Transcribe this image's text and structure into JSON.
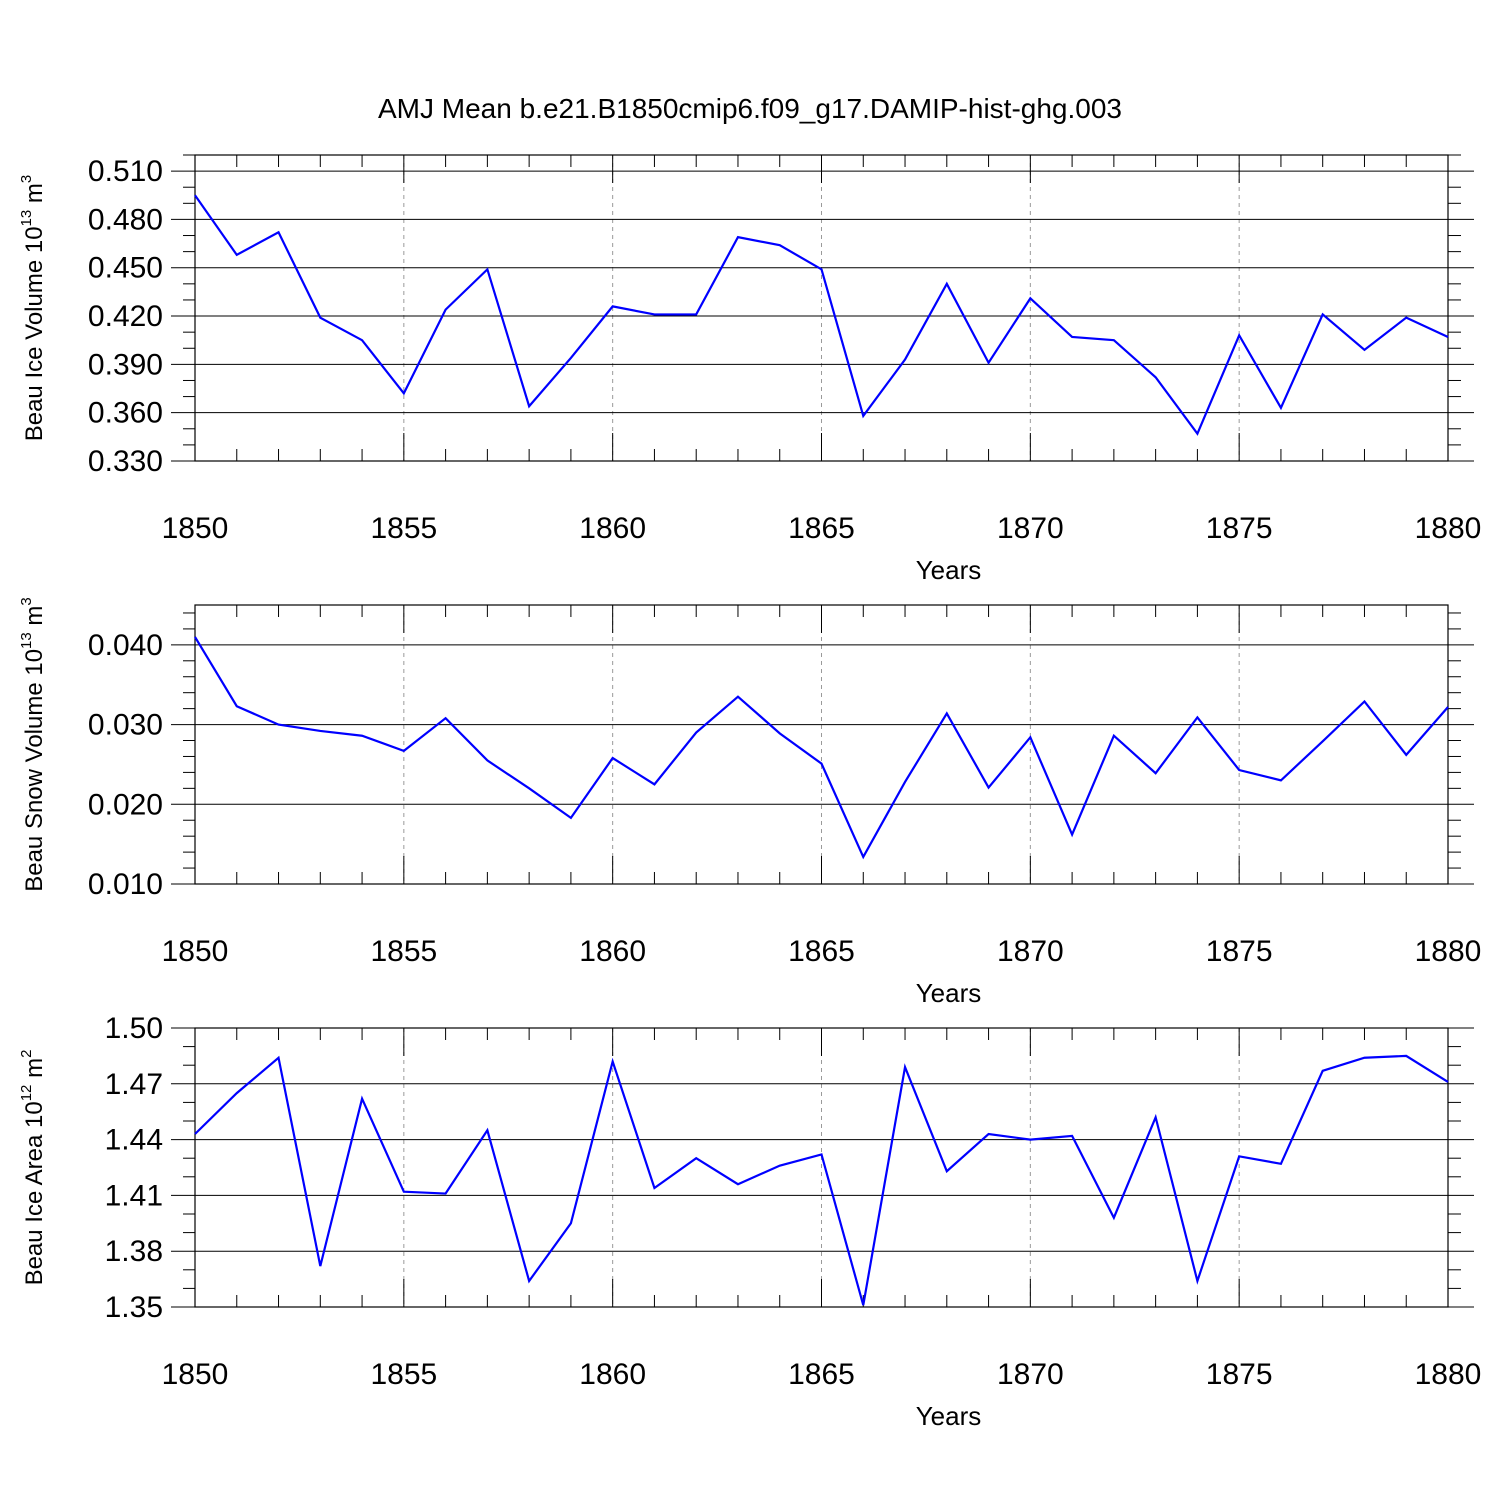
{
  "figure": {
    "title": "AMJ Mean b.e21.B1850cmip6.f09_g17.DAMIP-hist-ghg.003"
  },
  "colors": {
    "series": "#0000ff"
  },
  "chart_data": [
    {
      "type": "line",
      "title": "",
      "ylabel": {
        "text": "Beau Ice Volume 10",
        "exp": "13",
        "unit_text": " m",
        "unit_exp": "3"
      },
      "xlabel": "Years",
      "xlim": [
        1850,
        1880
      ],
      "ylim": [
        0.33,
        0.52
      ],
      "yticks": [
        0.33,
        0.36,
        0.39,
        0.42,
        0.45,
        0.48,
        0.51
      ],
      "ytick_labels": [
        "0.330",
        "0.360",
        "0.390",
        "0.420",
        "0.450",
        "0.480",
        "0.510"
      ],
      "yminor_step": 0.01,
      "xticks": [
        1850,
        1855,
        1860,
        1865,
        1870,
        1875,
        1880
      ],
      "xtick_labels": [
        "1850",
        "1855",
        "1860",
        "1865",
        "1870",
        "1875",
        "1880"
      ],
      "grid": "vertical dashed",
      "series": [
        {
          "x": [
            1850,
            1851,
            1852,
            1853,
            1854,
            1855,
            1856,
            1857,
            1858,
            1859,
            1860,
            1861,
            1862,
            1863,
            1864,
            1865,
            1866,
            1867,
            1868,
            1869,
            1870,
            1871,
            1872,
            1873,
            1874,
            1875,
            1876,
            1877,
            1878,
            1879,
            1880
          ],
          "values": [
            0.495,
            0.458,
            0.472,
            0.419,
            0.405,
            0.372,
            0.424,
            0.449,
            0.364,
            0.394,
            0.426,
            0.421,
            0.421,
            0.469,
            0.464,
            0.449,
            0.358,
            0.393,
            0.44,
            0.391,
            0.431,
            0.407,
            0.405,
            0.382,
            0.347,
            0.408,
            0.363,
            0.421,
            0.399,
            0.419,
            0.407
          ]
        }
      ]
    },
    {
      "type": "line",
      "title": "",
      "ylabel": {
        "text": "Beau Snow Volume 10",
        "exp": "13",
        "unit_text": " m",
        "unit_exp": "3"
      },
      "xlabel": "Years",
      "xlim": [
        1850,
        1880
      ],
      "ylim": [
        0.01,
        0.045
      ],
      "yticks": [
        0.01,
        0.02,
        0.03,
        0.04
      ],
      "ytick_labels": [
        "0.010",
        "0.020",
        "0.030",
        "0.040"
      ],
      "yminor_step": 0.002,
      "xticks": [
        1850,
        1855,
        1860,
        1865,
        1870,
        1875,
        1880
      ],
      "xtick_labels": [
        "1850",
        "1855",
        "1860",
        "1865",
        "1870",
        "1875",
        "1880"
      ],
      "grid": "vertical dashed",
      "series": [
        {
          "x": [
            1850,
            1851,
            1852,
            1853,
            1854,
            1855,
            1856,
            1857,
            1858,
            1859,
            1860,
            1861,
            1862,
            1863,
            1864,
            1865,
            1866,
            1867,
            1868,
            1869,
            1870,
            1871,
            1872,
            1873,
            1874,
            1875,
            1876,
            1877,
            1878,
            1879,
            1880
          ],
          "values": [
            0.041,
            0.0323,
            0.03,
            0.0292,
            0.0286,
            0.0267,
            0.0308,
            0.0255,
            0.022,
            0.0183,
            0.0258,
            0.0225,
            0.029,
            0.0335,
            0.0289,
            0.0251,
            0.0134,
            0.0228,
            0.0314,
            0.0221,
            0.0284,
            0.0162,
            0.0286,
            0.0239,
            0.0309,
            0.0243,
            0.023,
            0.0279,
            0.0329,
            0.0262,
            0.0322
          ]
        }
      ]
    },
    {
      "type": "line",
      "title": "",
      "ylabel": {
        "text": "Beau Ice Area 10",
        "exp": "12",
        "unit_text": " m",
        "unit_exp": "2"
      },
      "xlabel": "Years",
      "xlim": [
        1850,
        1880
      ],
      "ylim": [
        1.35,
        1.5
      ],
      "yticks": [
        1.35,
        1.38,
        1.41,
        1.44,
        1.47,
        1.5
      ],
      "ytick_labels": [
        "1.35",
        "1.38",
        "1.41",
        "1.44",
        "1.47",
        "1.50"
      ],
      "yminor_step": 0.01,
      "xticks": [
        1850,
        1855,
        1860,
        1865,
        1870,
        1875,
        1880
      ],
      "xtick_labels": [
        "1850",
        "1855",
        "1860",
        "1865",
        "1870",
        "1875",
        "1880"
      ],
      "grid": "vertical dashed",
      "series": [
        {
          "x": [
            1850,
            1851,
            1852,
            1853,
            1854,
            1855,
            1856,
            1857,
            1858,
            1859,
            1860,
            1861,
            1862,
            1863,
            1864,
            1865,
            1866,
            1867,
            1868,
            1869,
            1870,
            1871,
            1872,
            1873,
            1874,
            1875,
            1876,
            1877,
            1878,
            1879,
            1880
          ],
          "values": [
            1.443,
            1.465,
            1.484,
            1.372,
            1.462,
            1.412,
            1.411,
            1.445,
            1.364,
            1.395,
            1.482,
            1.414,
            1.43,
            1.416,
            1.426,
            1.432,
            1.351,
            1.479,
            1.423,
            1.443,
            1.44,
            1.442,
            1.398,
            1.452,
            1.364,
            1.431,
            1.427,
            1.477,
            1.484,
            1.485,
            1.471
          ]
        }
      ]
    }
  ]
}
